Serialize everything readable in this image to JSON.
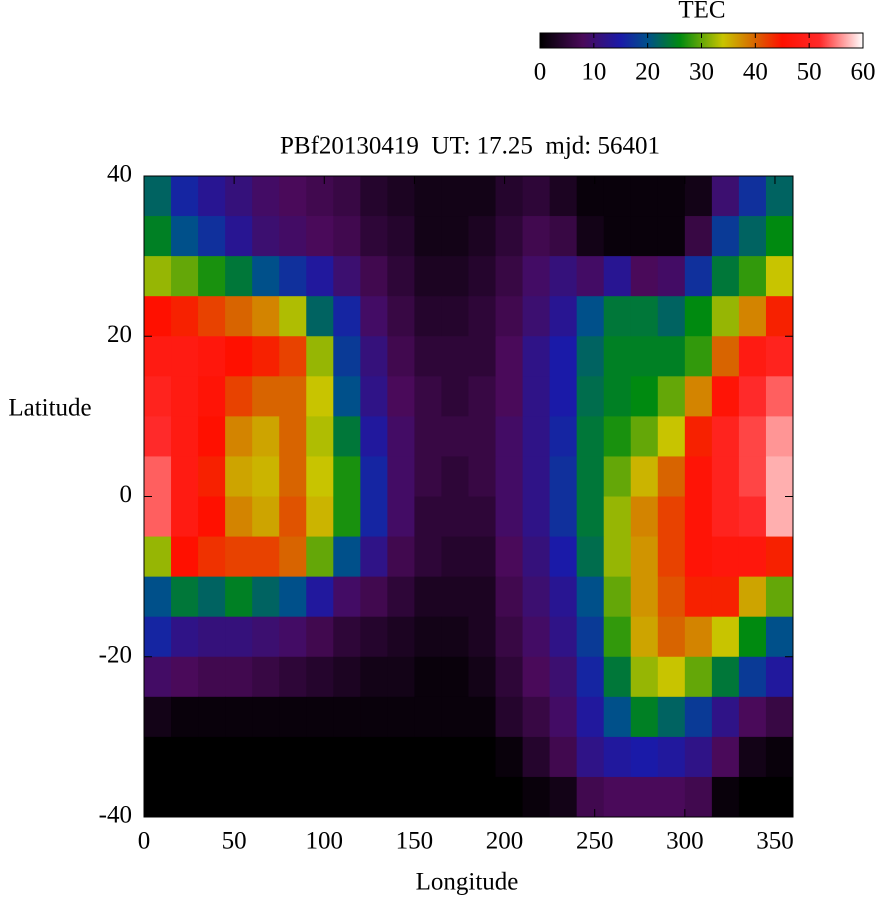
{
  "chart_data": {
    "type": "heatmap",
    "title": "PBf20130419  UT: 17.25  mjd: 56401",
    "xlabel": "Longitude",
    "ylabel": "Latitude",
    "colorbar_label": "TEC",
    "xlim": [
      0,
      360
    ],
    "ylim": [
      -40,
      40
    ],
    "xticks": [
      0,
      50,
      100,
      150,
      200,
      250,
      300,
      350
    ],
    "yticks": [
      -40,
      -20,
      0,
      20,
      40
    ],
    "clim": [
      0,
      60
    ],
    "cticks": [
      0,
      10,
      20,
      30,
      40,
      50,
      60
    ],
    "colormap": [
      {
        "value": 0,
        "color": "#000000"
      },
      {
        "value": 8,
        "color": "#4a0a5a"
      },
      {
        "value": 15,
        "color": "#1a1aa8"
      },
      {
        "value": 20,
        "color": "#00508a"
      },
      {
        "value": 26,
        "color": "#008a10"
      },
      {
        "value": 34,
        "color": "#c8c400"
      },
      {
        "value": 40,
        "color": "#d86400"
      },
      {
        "value": 45,
        "color": "#ff1000"
      },
      {
        "value": 52,
        "color": "#ff2a2a"
      },
      {
        "value": 60,
        "color": "#ffffff"
      }
    ],
    "x": [
      7.5,
      22.5,
      37.5,
      52.5,
      67.5,
      82.5,
      97.5,
      112.5,
      127.5,
      142.5,
      157.5,
      172.5,
      187.5,
      202.5,
      217.5,
      232.5,
      247.5,
      262.5,
      277.5,
      292.5,
      307.5,
      322.5,
      337.5,
      352.5
    ],
    "y": [
      37.5,
      32.5,
      27.5,
      22.5,
      17.5,
      12.5,
      7.5,
      2.5,
      -2.5,
      -7.5,
      -12.5,
      -17.5,
      -22.5,
      -27.5,
      -32.5,
      -37.5
    ],
    "z": [
      [
        22,
        16,
        13,
        11,
        9,
        8,
        7,
        6,
        4,
        3,
        2,
        2,
        2,
        4,
        5,
        3,
        1,
        1,
        1,
        1,
        2,
        10,
        17,
        22
      ],
      [
        25,
        20,
        17,
        13,
        10,
        9,
        8,
        7,
        5,
        4,
        2,
        2,
        3,
        5,
        7,
        6,
        2,
        1,
        1,
        1,
        6,
        18,
        22,
        26
      ],
      [
        32,
        30,
        27,
        24,
        20,
        17,
        14,
        10,
        7,
        5,
        3,
        3,
        4,
        6,
        9,
        11,
        9,
        13,
        8,
        9,
        17,
        24,
        28,
        34
      ],
      [
        45,
        44,
        42,
        40,
        38,
        33,
        22,
        16,
        9,
        6,
        4,
        4,
        5,
        7,
        10,
        13,
        20,
        24,
        24,
        22,
        26,
        32,
        38,
        44
      ],
      [
        48,
        48,
        47,
        45,
        44,
        42,
        32,
        18,
        11,
        7,
        5,
        5,
        5,
        8,
        12,
        15,
        22,
        25,
        25,
        25,
        28,
        40,
        48,
        50
      ],
      [
        50,
        48,
        46,
        42,
        40,
        40,
        34,
        20,
        12,
        8,
        6,
        5,
        6,
        8,
        12,
        15,
        23,
        25,
        26,
        30,
        38,
        46,
        52,
        54
      ],
      [
        52,
        48,
        45,
        38,
        36,
        40,
        33,
        24,
        14,
        9,
        6,
        6,
        6,
        9,
        12,
        16,
        24,
        27,
        30,
        34,
        44,
        50,
        53,
        56
      ],
      [
        54,
        48,
        44,
        36,
        35,
        40,
        34,
        27,
        16,
        9,
        6,
        5,
        6,
        9,
        12,
        17,
        24,
        30,
        35,
        40,
        46,
        50,
        53,
        57
      ],
      [
        54,
        48,
        45,
        38,
        36,
        41,
        35,
        27,
        16,
        9,
        5,
        5,
        5,
        9,
        12,
        17,
        24,
        32,
        38,
        42,
        46,
        50,
        52,
        57
      ],
      [
        32,
        45,
        43,
        42,
        42,
        40,
        30,
        20,
        12,
        7,
        5,
        4,
        4,
        8,
        11,
        15,
        23,
        32,
        37,
        42,
        46,
        47,
        47,
        44
      ],
      [
        20,
        24,
        22,
        25,
        22,
        20,
        14,
        9,
        7,
        5,
        3,
        3,
        3,
        7,
        10,
        13,
        20,
        30,
        37,
        41,
        44,
        44,
        36,
        30
      ],
      [
        16,
        12,
        11,
        11,
        10,
        9,
        7,
        5,
        4,
        3,
        2,
        2,
        3,
        6,
        9,
        12,
        18,
        28,
        36,
        40,
        38,
        34,
        26,
        20
      ],
      [
        9,
        8,
        7,
        7,
        6,
        5,
        4,
        3,
        2,
        2,
        1,
        1,
        2,
        5,
        8,
        10,
        16,
        24,
        32,
        34,
        30,
        24,
        18,
        14
      ],
      [
        2,
        1,
        1,
        1,
        1,
        1,
        1,
        1,
        1,
        1,
        1,
        1,
        1,
        4,
        6,
        9,
        14,
        20,
        25,
        22,
        18,
        12,
        8,
        6
      ],
      [
        0,
        0,
        0,
        0,
        0,
        0,
        0,
        0,
        0,
        0,
        0,
        0,
        0,
        1,
        4,
        7,
        12,
        14,
        15,
        14,
        12,
        8,
        2,
        1
      ],
      [
        0,
        0,
        0,
        0,
        0,
        0,
        0,
        0,
        0,
        0,
        0,
        0,
        0,
        0,
        1,
        2,
        7,
        8,
        8,
        8,
        7,
        1,
        0,
        0
      ]
    ]
  }
}
